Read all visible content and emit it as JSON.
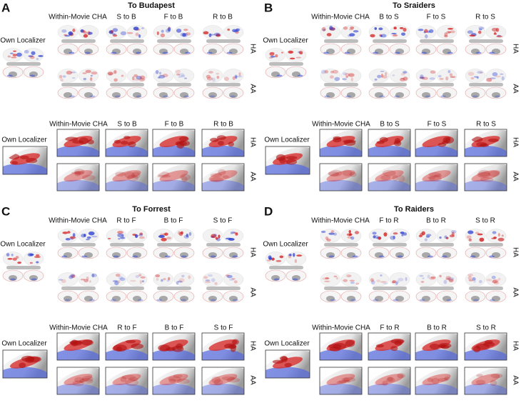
{
  "panels": [
    {
      "letter": "A",
      "title": "To Budapest",
      "own_localizer": "Own Localizer",
      "columns": [
        "Within-Movie CHA",
        "S to B",
        "F to B",
        "R to B"
      ],
      "rows": [
        "HA",
        "AA"
      ],
      "zoom": {
        "own_localizer": "Own Localizer",
        "columns": [
          "Within-Movie CHA",
          "S to B",
          "F to B",
          "R to B"
        ],
        "rows": [
          "HA",
          "AA"
        ]
      }
    },
    {
      "letter": "B",
      "title": "To Sraiders",
      "own_localizer": "Own Localizer",
      "columns": [
        "Within-Movie CHA",
        "B to S",
        "F to S",
        "R to S"
      ],
      "rows": [
        "HA",
        "AA"
      ],
      "zoom": {
        "own_localizer": "Own Localizer",
        "columns": [
          "Within-Movie CHA",
          "B to S",
          "F to S",
          "R to S"
        ],
        "rows": [
          "HA",
          "AA"
        ]
      }
    },
    {
      "letter": "C",
      "title": "To Forrest",
      "own_localizer": "Own Localizer",
      "columns": [
        "Within-Movie CHA",
        "R to F",
        "B to F",
        "S to F"
      ],
      "rows": [
        "HA",
        "AA"
      ],
      "zoom": {
        "own_localizer": "Own Localizer",
        "columns": [
          "Within-Movie CHA",
          "R to F",
          "B to F",
          "S to F"
        ],
        "rows": [
          "HA",
          "AA"
        ]
      }
    },
    {
      "letter": "D",
      "title": "To Raiders",
      "own_localizer": "Own Localizer",
      "columns": [
        "Within-Movie CHA",
        "F to R",
        "B to R",
        "S to R"
      ],
      "rows": [
        "HA",
        "AA"
      ],
      "zoom": {
        "own_localizer": "Own Localizer",
        "columns": [
          "Within-Movie CHA",
          "F to R",
          "B to R",
          "S to R"
        ],
        "rows": [
          "HA",
          "AA"
        ]
      }
    }
  ]
}
